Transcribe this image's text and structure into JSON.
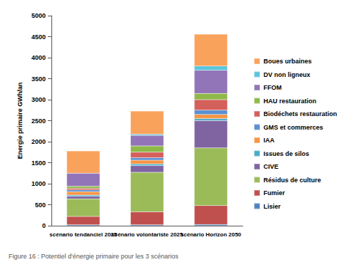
{
  "chart_data": {
    "type": "bar",
    "stacked": true,
    "grid": false,
    "legend": "right",
    "y_label": "Energie primaire GWh/an",
    "caption": "Figure 16 : Potentiel d'énergie primaire pour les 3 scénarios",
    "categories": [
      "scénario tendanciel 2025",
      "scénario volontariste 2025",
      "scénario Horizon 2050"
    ],
    "ylim": [
      0,
      5000
    ],
    "yticks": [
      0,
      500,
      1000,
      1500,
      2000,
      2500,
      3000,
      3500,
      4000,
      4500,
      5000
    ],
    "series": [
      {
        "name": "Lisier",
        "color": "#4f81bd",
        "values": [
          20,
          20,
          30
        ]
      },
      {
        "name": "Fumier",
        "color": "#c0504d",
        "values": [
          200,
          310,
          450
        ]
      },
      {
        "name": "Résidus de culture",
        "color": "#9bbb59",
        "values": [
          420,
          940,
          1370
        ]
      },
      {
        "name": "CIVE",
        "color": "#8064a2",
        "values": [
          60,
          160,
          650
        ]
      },
      {
        "name": "Issues de silos",
        "color": "#4bacc6",
        "values": [
          30,
          40,
          50
        ]
      },
      {
        "name": "IAA",
        "color": "#f79646",
        "values": [
          80,
          90,
          100
        ]
      },
      {
        "name": "GMS et commerces",
        "color": "#5b8fd0",
        "values": [
          40,
          60,
          100
        ]
      },
      {
        "name": "Biodéchets restauration",
        "color": "#d4605c",
        "values": [
          40,
          130,
          250
        ]
      },
      {
        "name": "HAU restauration",
        "color": "#8fb84a",
        "values": [
          50,
          150,
          150
        ]
      },
      {
        "name": "FFOM",
        "color": "#9274b8",
        "values": [
          310,
          250,
          550
        ]
      },
      {
        "name": "DV non ligneux",
        "color": "#5cc4dc",
        "values": [
          0,
          30,
          100
        ]
      },
      {
        "name": "Boues urbaines",
        "color": "#f9a25c",
        "values": [
          530,
          550,
          760
        ]
      }
    ]
  }
}
